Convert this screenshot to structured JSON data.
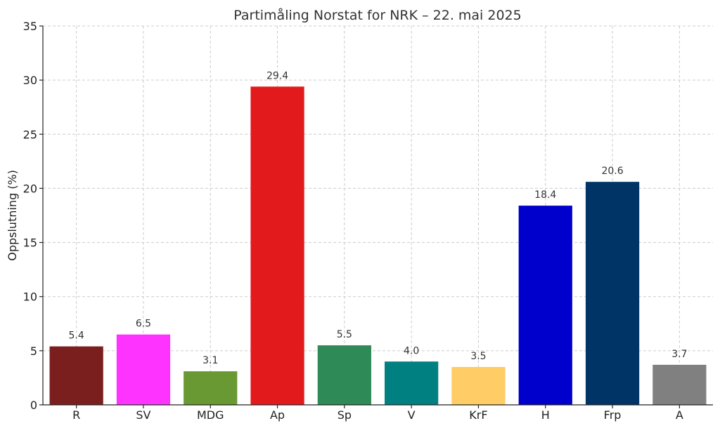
{
  "chart_data": {
    "type": "bar",
    "title": "Partimåling Norstat for NRK – 22. mai 2025",
    "xlabel": "",
    "ylabel": "Oppslutning (%)",
    "ylim": [
      0,
      35
    ],
    "yticks": [
      0,
      5,
      10,
      15,
      20,
      25,
      30,
      35
    ],
    "grid": true,
    "categories": [
      "R",
      "SV",
      "MDG",
      "Ap",
      "Sp",
      "V",
      "KrF",
      "H",
      "Frp",
      "A"
    ],
    "values": [
      5.4,
      6.5,
      3.1,
      29.4,
      5.5,
      4.0,
      3.5,
      18.4,
      20.6,
      3.7
    ],
    "value_labels": [
      "5.4",
      "6.5",
      "3.1",
      "29.4",
      "5.5",
      "4.0",
      "3.5",
      "18.4",
      "20.6",
      "3.7"
    ],
    "colors": [
      "#7b1e1e",
      "#ff33ff",
      "#689933",
      "#e31a1c",
      "#2e8b57",
      "#008080",
      "#ffcc66",
      "#0000cc",
      "#003366",
      "#808080"
    ]
  }
}
